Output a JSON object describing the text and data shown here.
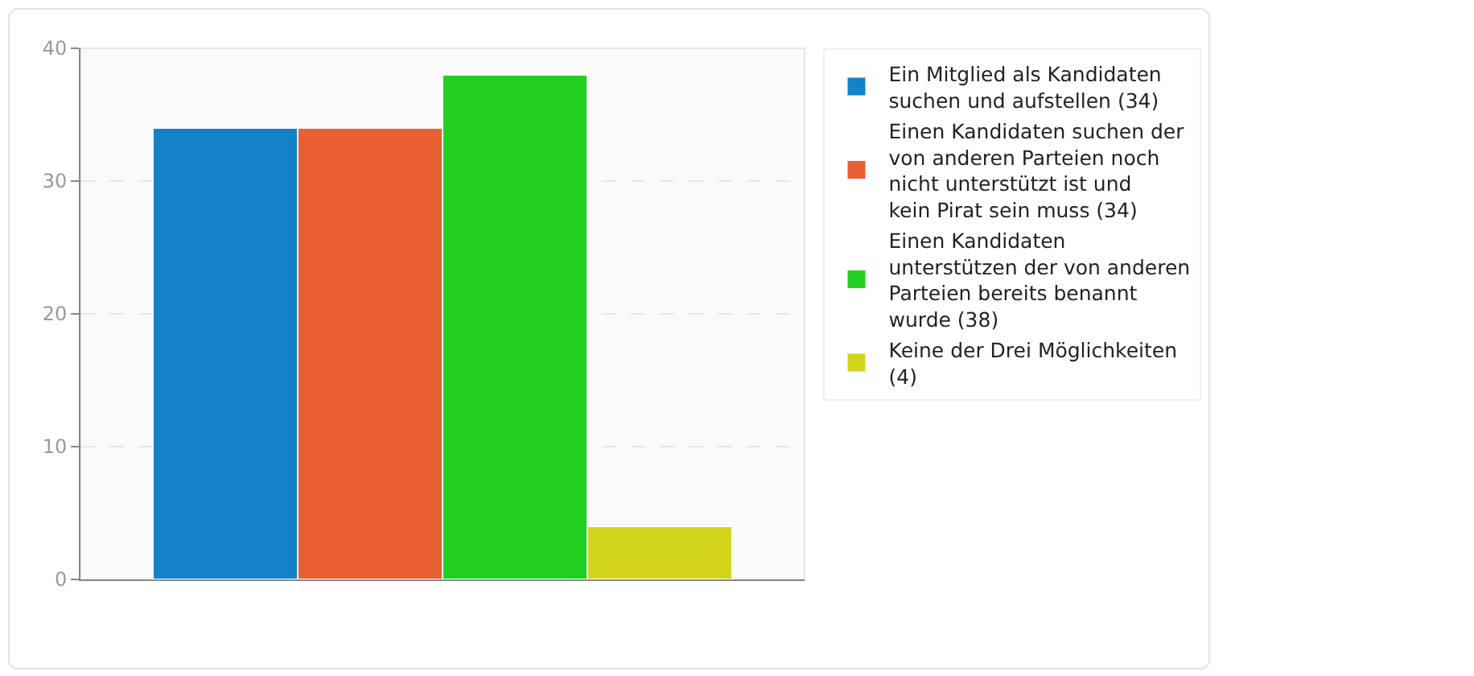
{
  "chart_data": {
    "type": "bar",
    "categories": [
      null
    ],
    "series": [
      {
        "name": "Ein Mitglied als Kandidaten suchen und aufstellen (34)",
        "color": "#1482c8",
        "values": [
          34
        ]
      },
      {
        "name": "Einen Kandidaten suchen der von anderen Parteien noch nicht unterstützt ist und kein Pirat sein muss (34)",
        "color": "#e85f34",
        "values": [
          34
        ]
      },
      {
        "name": "Einen Kandidaten unterstützen der von anderen Parteien bereits benannt wurde (38)",
        "color": "#21cf23",
        "values": [
          38
        ]
      },
      {
        "name": "Keine der Drei Möglichkeiten (4)",
        "color": "#d3d41c",
        "values": [
          4
        ]
      }
    ],
    "ylim": [
      0,
      40
    ],
    "yticks": [
      0,
      10,
      20,
      30,
      40
    ],
    "grid": "y",
    "legend": "right"
  }
}
